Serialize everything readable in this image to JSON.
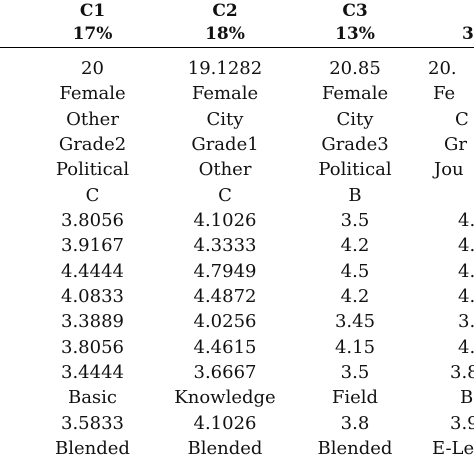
{
  "columns": [
    {
      "name": "C1",
      "share": "17%",
      "values": [
        "20",
        "Female",
        "Other",
        "Grade2",
        "Political",
        "C",
        "3.8056",
        "3.9167",
        "4.4444",
        "4.0833",
        "3.3889",
        "3.8056",
        "3.4444",
        "Basic",
        "3.5833",
        "Blended"
      ]
    },
    {
      "name": "C2",
      "share": "18%",
      "values": [
        "19.1282",
        "Female",
        "City",
        "Grade1",
        "Other",
        "C",
        "4.1026",
        "4.3333",
        "4.7949",
        "4.4872",
        "4.0256",
        "4.4615",
        "3.6667",
        "Knowledge",
        "4.1026",
        "Blended"
      ]
    },
    {
      "name": "C3",
      "share": "13%",
      "values": [
        "20.85",
        "Female",
        "City",
        "Grade3",
        "Political",
        "B",
        "3.5",
        "4.2",
        "4.5",
        "4.2",
        "3.45",
        "4.15",
        "3.5",
        "Field",
        "3.8",
        "Blended"
      ]
    },
    {
      "name": "3",
      "share": "",
      "values": [
        "20.",
        "Fe",
        "C",
        "Gr",
        "Jou",
        "",
        "4.",
        "4.",
        "4.",
        "4.",
        "3.",
        "4.",
        "3.8",
        "B",
        "3.9",
        "E-Le"
      ]
    }
  ]
}
